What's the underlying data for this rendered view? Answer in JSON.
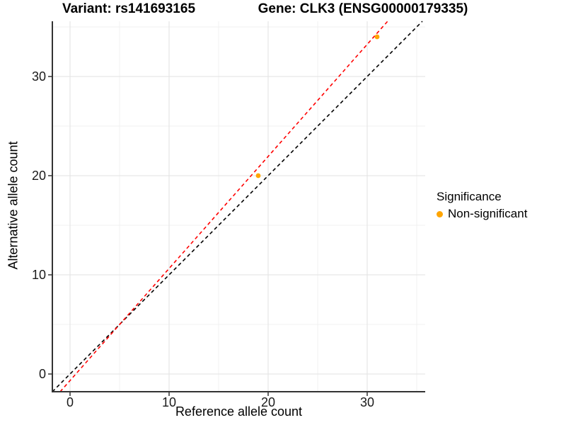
{
  "chart_data": {
    "type": "scatter",
    "titles": {
      "left": "Variant: rs141693165",
      "right": "Gene: CLK3 (ENSG00000179335)"
    },
    "xlabel": "Reference allele count",
    "ylabel": "Alternative allele count",
    "x_ticks": [
      0,
      10,
      20,
      30
    ],
    "y_ticks": [
      0,
      10,
      20,
      30
    ],
    "x_minor_ticks": [
      5,
      15,
      25,
      35
    ],
    "y_minor_ticks": [
      5,
      15,
      25,
      35
    ],
    "xlim": [
      -1.79,
      35.86
    ],
    "ylim": [
      -1.79,
      35.57
    ],
    "grid": true,
    "series": [
      {
        "name": "Non-significant",
        "color": "#FFA500",
        "points": [
          {
            "x": 19,
            "y": 20
          },
          {
            "x": 31,
            "y": 34
          }
        ]
      }
    ],
    "reference_lines": [
      {
        "name": "identity-line",
        "slope": 1.0,
        "intercept": 0.0,
        "color": "#000000",
        "style": "dashed"
      },
      {
        "name": "fit-line",
        "slope": 1.13,
        "intercept": -0.66,
        "color": "#FF0000",
        "style": "dashed"
      }
    ],
    "legend": {
      "title": "Significance",
      "position": "right",
      "entries": [
        {
          "label": "Non-significant",
          "color": "#FFA500"
        }
      ]
    },
    "colors": {
      "major_grid": "#E2E2E2",
      "minor_grid": "#F1F1F1",
      "axis_line": "#333333",
      "tick_text": "#1a1a1a"
    }
  }
}
